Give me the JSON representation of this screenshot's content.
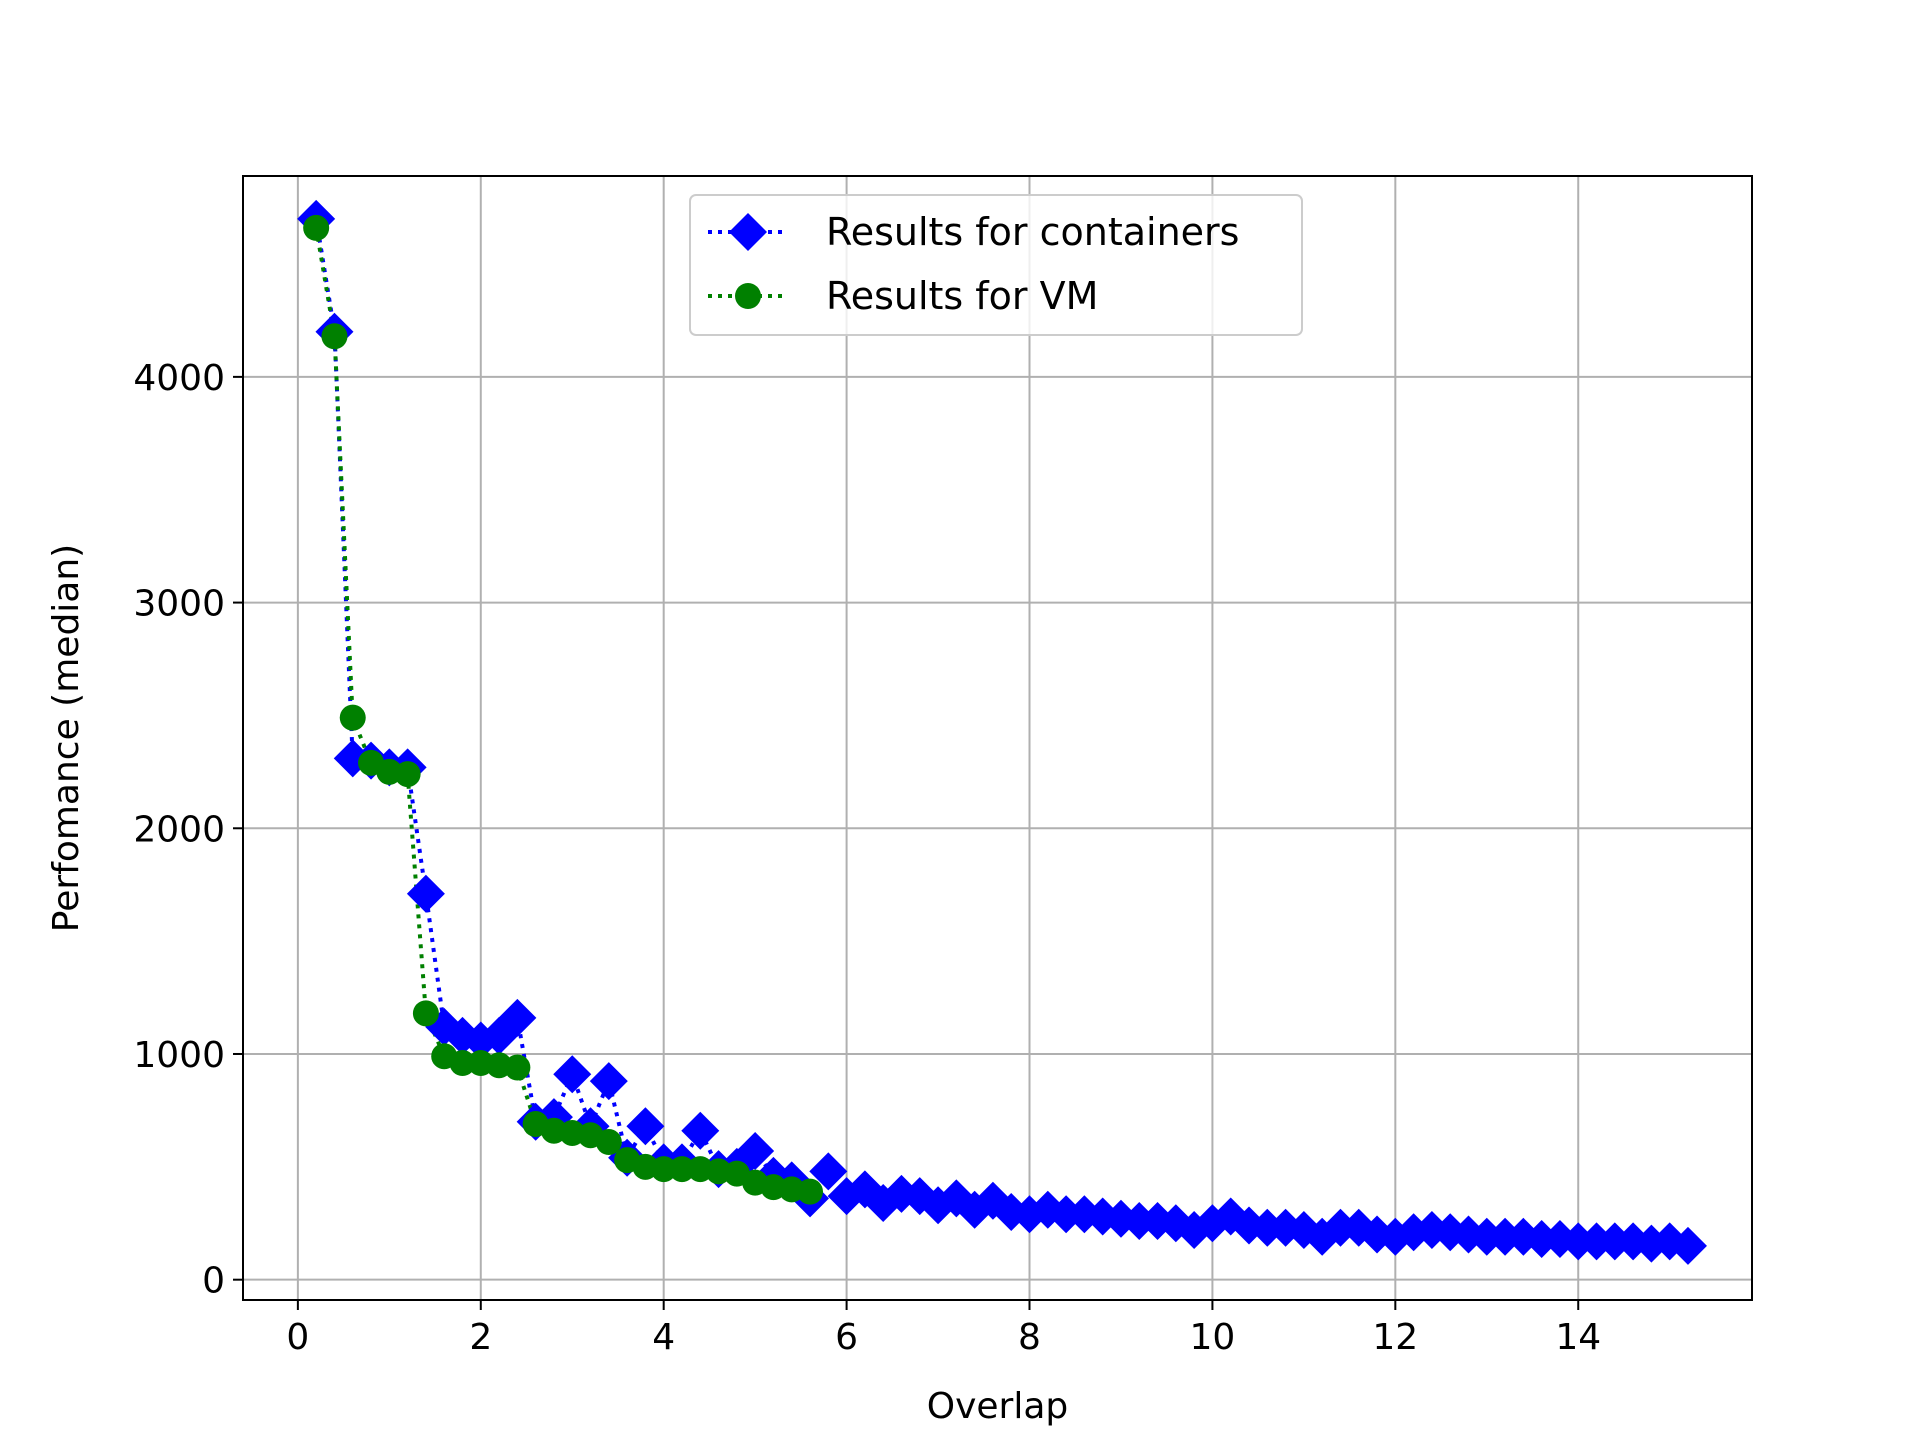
{
  "chart_data": {
    "type": "line",
    "xlabel": "Overlap",
    "ylabel": "Perfomance (median)",
    "xlim": [
      -0.6,
      15.9
    ],
    "ylim": [
      -90,
      4890
    ],
    "xticks": [
      0,
      2,
      4,
      6,
      8,
      10,
      12,
      14
    ],
    "yticks": [
      0,
      1000,
      2000,
      3000,
      4000
    ],
    "grid": true,
    "legend_position": "upper center",
    "series": [
      {
        "name": "Results for containers",
        "color": "#0000ff",
        "marker": "diamond",
        "linestyle": "dotted",
        "x": [
          0.2,
          0.4,
          0.6,
          0.8,
          1.0,
          1.2,
          1.4,
          1.6,
          1.8,
          2.0,
          2.2,
          2.4,
          2.6,
          2.8,
          3.0,
          3.2,
          3.4,
          3.6,
          3.8,
          4.0,
          4.2,
          4.4,
          4.6,
          4.8,
          5.0,
          5.2,
          5.4,
          5.6,
          5.8,
          6.0,
          6.2,
          6.4,
          6.6,
          6.8,
          7.0,
          7.2,
          7.4,
          7.6,
          7.8,
          8.0,
          8.2,
          8.4,
          8.6,
          8.8,
          9.0,
          9.2,
          9.4,
          9.6,
          9.8,
          10.0,
          10.2,
          10.4,
          10.6,
          10.8,
          11.0,
          11.2,
          11.4,
          11.6,
          11.8,
          12.0,
          12.2,
          12.4,
          12.6,
          12.8,
          13.0,
          13.2,
          13.4,
          13.6,
          13.8,
          14.0,
          14.2,
          14.4,
          14.6,
          14.8,
          15.0,
          15.2
        ],
        "y": [
          4700,
          4200,
          2310,
          2300,
          2270,
          2270,
          1710,
          1120,
          1080,
          1060,
          1080,
          1160,
          700,
          720,
          910,
          680,
          880,
          540,
          680,
          520,
          520,
          660,
          490,
          500,
          570,
          460,
          440,
          360,
          480,
          370,
          400,
          340,
          380,
          370,
          330,
          360,
          310,
          350,
          300,
          290,
          310,
          290,
          290,
          280,
          270,
          260,
          260,
          250,
          220,
          250,
          280,
          240,
          230,
          230,
          220,
          190,
          230,
          230,
          200,
          190,
          210,
          220,
          210,
          200,
          190,
          190,
          190,
          180,
          180,
          170,
          170,
          170,
          170,
          160,
          170,
          150
        ]
      },
      {
        "name": "Results for VM",
        "color": "#008000",
        "marker": "circle",
        "linestyle": "dotted",
        "x": [
          0.2,
          0.4,
          0.6,
          0.8,
          1.0,
          1.2,
          1.4,
          1.6,
          1.8,
          2.0,
          2.2,
          2.4,
          2.6,
          2.8,
          3.0,
          3.2,
          3.4,
          3.6,
          3.8,
          4.0,
          4.2,
          4.4,
          4.6,
          4.8,
          5.0,
          5.2,
          5.4,
          5.6
        ],
        "y": [
          4660,
          4180,
          2490,
          2290,
          2250,
          2240,
          1180,
          990,
          960,
          960,
          950,
          940,
          690,
          660,
          650,
          640,
          610,
          530,
          500,
          490,
          490,
          490,
          480,
          470,
          430,
          410,
          400,
          390
        ]
      }
    ]
  }
}
